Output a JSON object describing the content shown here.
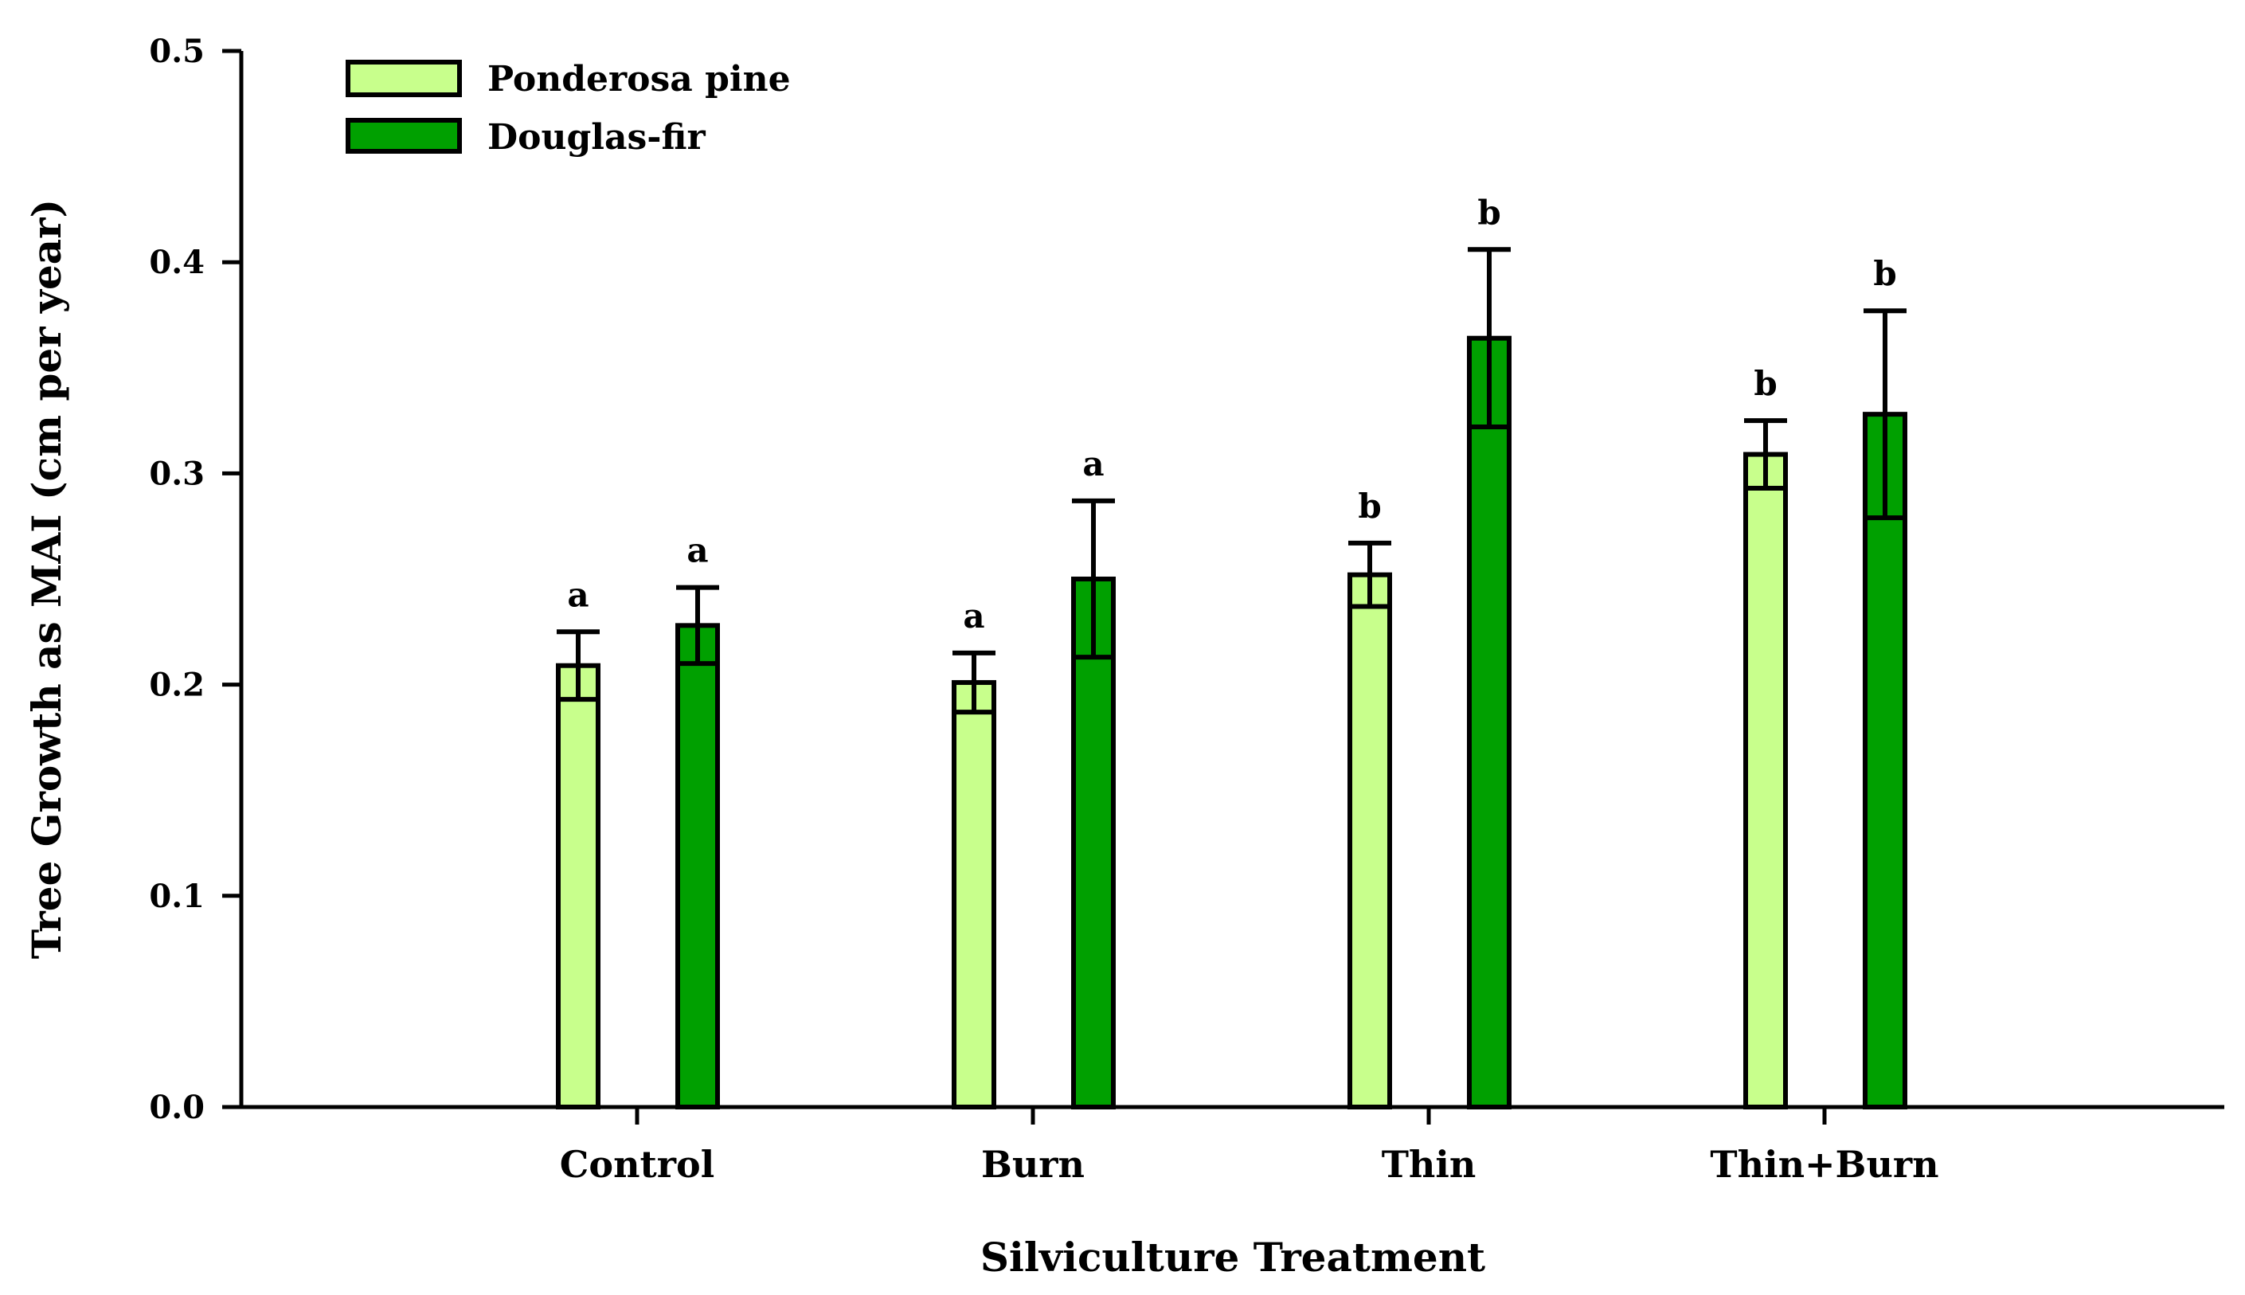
{
  "chart_data": {
    "type": "bar",
    "title": "",
    "xlabel": "Silviculture Treatment",
    "ylabel": "Tree Growth as MAI (cm per year)",
    "ylim": [
      0,
      0.5
    ],
    "yticks": [
      "0.0",
      "0.1",
      "0.2",
      "0.3",
      "0.4",
      "0.5"
    ],
    "categories": [
      "Control",
      "Burn",
      "Thin",
      "Thin+Burn"
    ],
    "legend_position": "top-left",
    "series": [
      {
        "name": "Ponderosa pine",
        "color": "#c8ff8c",
        "values": [
          0.209,
          0.201,
          0.252,
          0.309
        ],
        "errors": [
          0.016,
          0.014,
          0.015,
          0.016
        ],
        "significance": [
          "a",
          "a",
          "b",
          "b"
        ]
      },
      {
        "name": "Douglas-fir",
        "color": "#00a000",
        "values": [
          0.228,
          0.25,
          0.364,
          0.328
        ],
        "errors": [
          0.018,
          0.037,
          0.042,
          0.049
        ],
        "significance": [
          "a",
          "a",
          "b",
          "b"
        ]
      }
    ]
  }
}
